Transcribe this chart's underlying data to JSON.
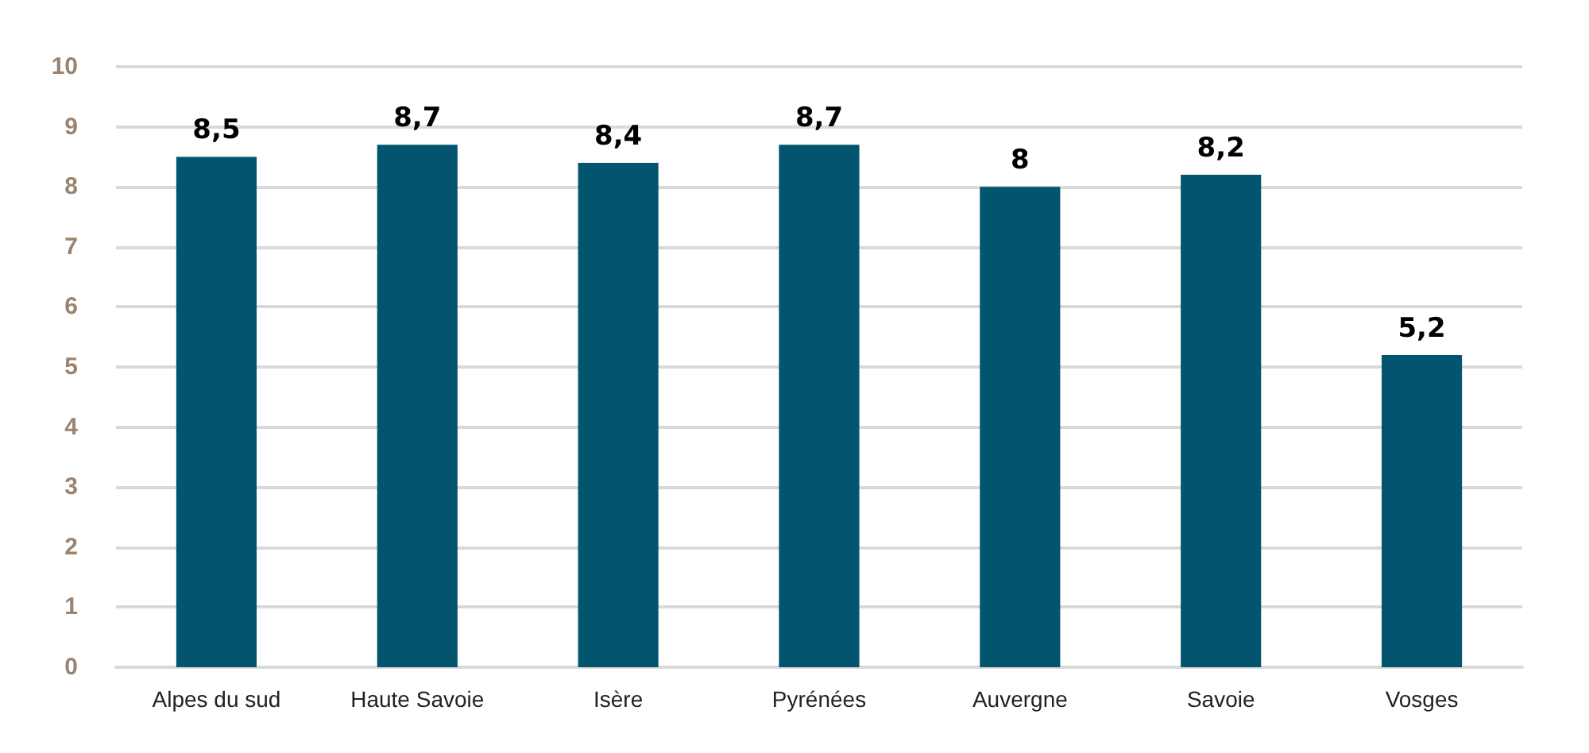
{
  "chart_data": {
    "type": "bar",
    "categories": [
      "Alpes du sud",
      "Haute Savoie",
      "Isère",
      "Pyrénées",
      "Auvergne",
      "Savoie",
      "Vosges"
    ],
    "values": [
      8.5,
      8.7,
      8.4,
      8.7,
      8,
      8.2,
      5.2
    ],
    "color": "#02546f",
    "value_labels": [
      "8,5",
      "8,7",
      "8,4",
      "8,7",
      "8",
      "8,2",
      "5,2"
    ],
    "ylim": [
      0,
      10
    ],
    "yticks": [
      0,
      1,
      2,
      3,
      4,
      5,
      6,
      7,
      8,
      9,
      10
    ],
    "grid": "y"
  }
}
